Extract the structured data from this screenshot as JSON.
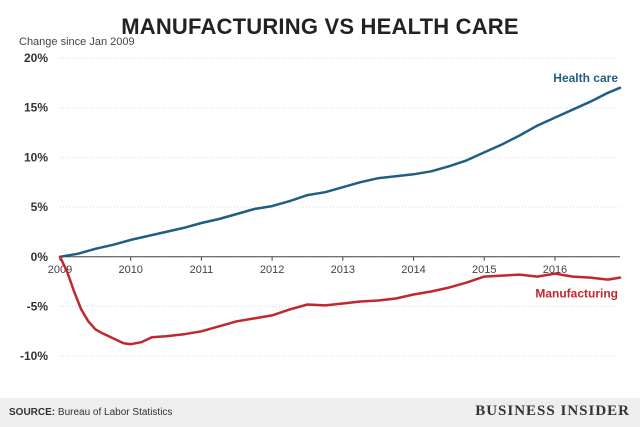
{
  "chart_data": {
    "type": "line",
    "title": "MANUFACTURING VS HEALTH CARE",
    "ylabel": "Change since Jan 2009",
    "xlabel": "",
    "x_ticks": [
      "2009",
      "2010",
      "2011",
      "2012",
      "2013",
      "2014",
      "2015",
      "2016"
    ],
    "y_ticks": [
      "20%",
      "15%",
      "10%",
      "5%",
      "0%",
      "-5%",
      "-10%"
    ],
    "ylim": [
      -12,
      20
    ],
    "xlim": [
      2009.0,
      2016.92
    ],
    "grid": true,
    "series": [
      {
        "name": "Health care",
        "label": "Health care",
        "color": "#1f5f82",
        "x": [
          2009.0,
          2009.25,
          2009.5,
          2009.75,
          2010.0,
          2010.25,
          2010.5,
          2010.75,
          2011.0,
          2011.25,
          2011.5,
          2011.75,
          2012.0,
          2012.25,
          2012.5,
          2012.75,
          2013.0,
          2013.25,
          2013.5,
          2013.75,
          2014.0,
          2014.25,
          2014.5,
          2014.75,
          2015.0,
          2015.25,
          2015.5,
          2015.75,
          2016.0,
          2016.25,
          2016.5,
          2016.75,
          2016.92
        ],
        "values": [
          0.0,
          0.3,
          0.8,
          1.2,
          1.7,
          2.1,
          2.5,
          2.9,
          3.4,
          3.8,
          4.3,
          4.8,
          5.1,
          5.6,
          6.2,
          6.5,
          7.0,
          7.5,
          7.9,
          8.1,
          8.3,
          8.6,
          9.1,
          9.7,
          10.5,
          11.3,
          12.2,
          13.2,
          14.0,
          14.8,
          15.6,
          16.5,
          17.0
        ]
      },
      {
        "name": "Manufacturing",
        "label": "Manufacturing",
        "color": "#c0282d",
        "x": [
          2009.0,
          2009.1,
          2009.2,
          2009.3,
          2009.4,
          2009.5,
          2009.6,
          2009.75,
          2009.9,
          2010.0,
          2010.15,
          2010.3,
          2010.5,
          2010.75,
          2011.0,
          2011.25,
          2011.5,
          2011.75,
          2012.0,
          2012.25,
          2012.5,
          2012.75,
          2013.0,
          2013.25,
          2013.5,
          2013.75,
          2014.0,
          2014.25,
          2014.5,
          2014.75,
          2015.0,
          2015.25,
          2015.5,
          2015.75,
          2016.0,
          2016.25,
          2016.5,
          2016.75,
          2016.92
        ],
        "values": [
          0.0,
          -1.5,
          -3.5,
          -5.3,
          -6.5,
          -7.3,
          -7.7,
          -8.2,
          -8.7,
          -8.8,
          -8.6,
          -8.1,
          -8.0,
          -7.8,
          -7.5,
          -7.0,
          -6.5,
          -6.2,
          -5.9,
          -5.3,
          -4.8,
          -4.9,
          -4.7,
          -4.5,
          -4.4,
          -4.2,
          -3.8,
          -3.5,
          -3.1,
          -2.6,
          -2.0,
          -1.9,
          -1.8,
          -2.0,
          -1.7,
          -2.0,
          -2.1,
          -2.3,
          -2.1
        ]
      }
    ]
  },
  "header": {
    "title": "MANUFACTURING VS HEALTH CARE",
    "y_note": "Change since Jan 2009"
  },
  "footer": {
    "source_label": "SOURCE:",
    "source_text": " Bureau of Labor Statistics",
    "brand": "BUSINESS INSIDER"
  }
}
